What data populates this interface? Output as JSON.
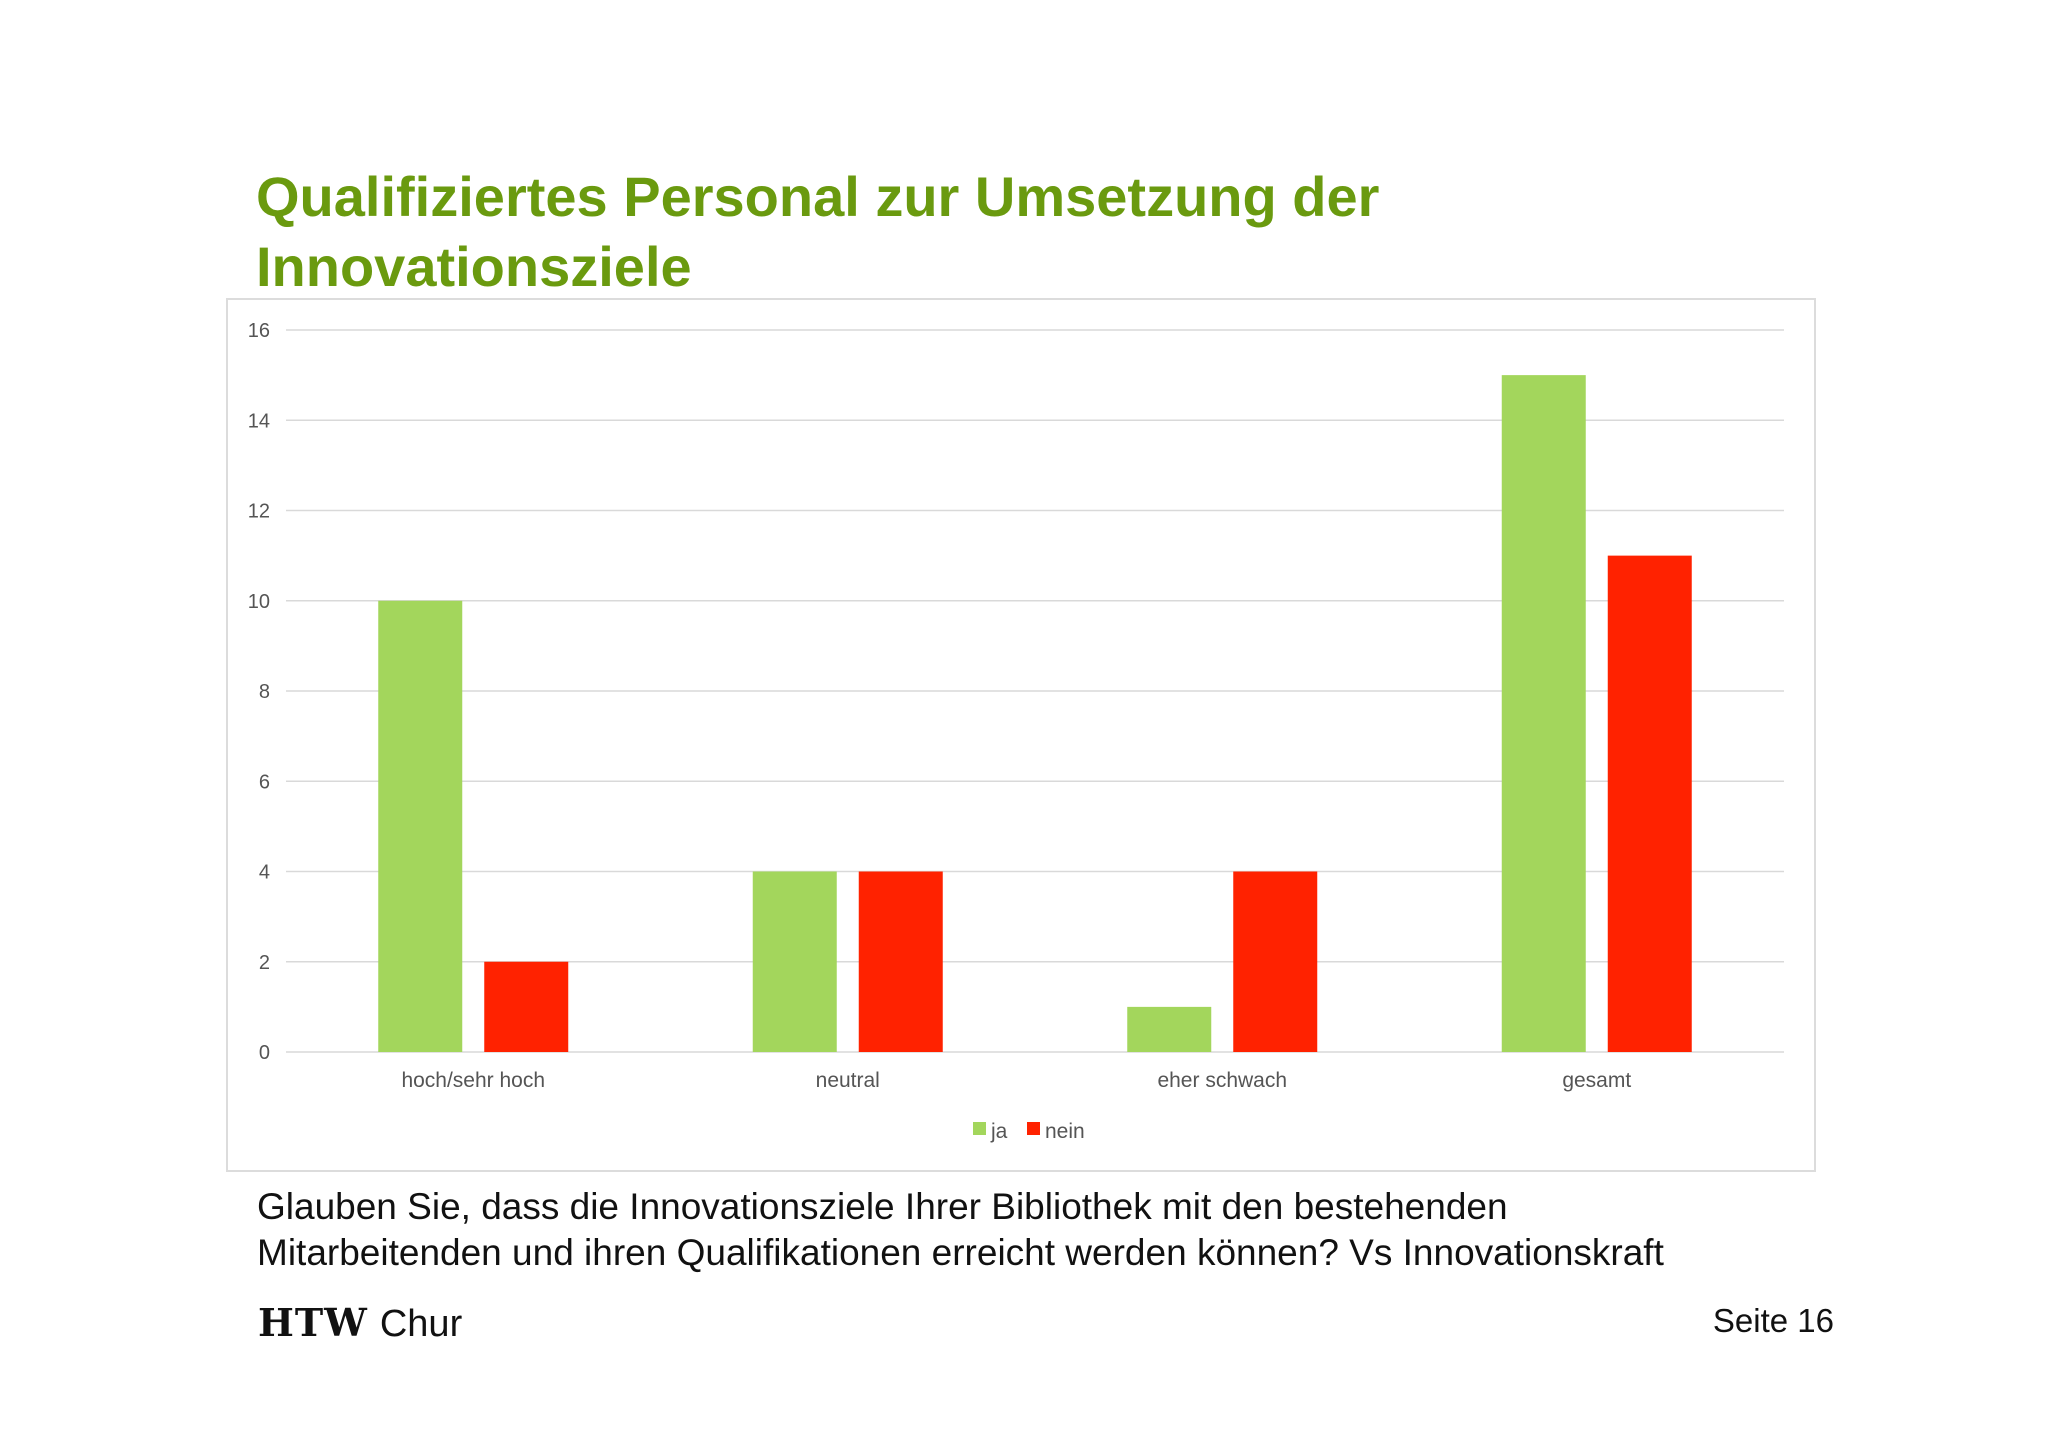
{
  "slide": {
    "title_lines": [
      "Qualifiziertes Personal zur Umsetzung der",
      "Innovationsziele"
    ],
    "caption_lines": [
      "Glauben Sie, dass die Innovationsziele Ihrer Bibliothek mit den bestehenden",
      "Mitarbeitenden und ihren Qualifikationen erreicht werden können? Vs Innovationskraft"
    ],
    "logo": {
      "bold": "HTW",
      "light": "Chur"
    },
    "page_label": "Seite 16"
  },
  "chart_data": {
    "type": "bar",
    "categories": [
      "hoch/sehr hoch",
      "neutral",
      "eher schwach",
      "gesamt"
    ],
    "series": [
      {
        "name": "ja",
        "values": [
          10,
          4,
          1,
          15
        ],
        "color": "#a3d65c"
      },
      {
        "name": "nein",
        "values": [
          2,
          4,
          4,
          11
        ],
        "color": "#ff2200"
      }
    ],
    "ylim": [
      0,
      16
    ],
    "yticks": [
      0,
      2,
      4,
      6,
      8,
      10,
      12,
      14,
      16
    ],
    "grid": true,
    "legend": "bottom",
    "gridline_color": "#d9d9d9"
  }
}
